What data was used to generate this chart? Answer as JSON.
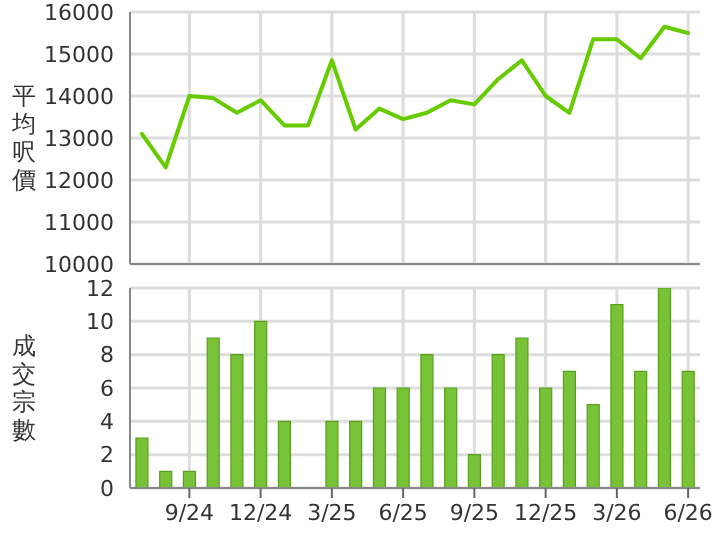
{
  "chart_data": [
    {
      "type": "line",
      "ylabel": "平均呎價",
      "categories": [
        null,
        null,
        null,
        null,
        null,
        null,
        null,
        null,
        null,
        null,
        null,
        null,
        null,
        null,
        null,
        null,
        null,
        null,
        null,
        null,
        null,
        null,
        null,
        null
      ],
      "values": [
        13100,
        12300,
        14000,
        13950,
        13600,
        13900,
        13300,
        13300,
        14850,
        13200,
        13700,
        13450,
        13600,
        13900,
        13800,
        14400,
        14850,
        14000,
        13600,
        15350,
        15350,
        14900,
        15650,
        15500
      ],
      "color": "#66cc00",
      "ylim": [
        10000,
        16000
      ],
      "yticks": [
        10000,
        11000,
        12000,
        13000,
        14000,
        15000,
        16000
      ],
      "grid": true,
      "tick_labels": "y"
    },
    {
      "type": "bar",
      "ylabel": "成交宗數",
      "categories": [
        null,
        null,
        "9/24",
        null,
        null,
        "12/24",
        null,
        null,
        "3/25",
        null,
        null,
        "6/25",
        null,
        null,
        "9/25",
        null,
        null,
        "12/25",
        null,
        null,
        "3/26",
        null,
        null,
        "6/26"
      ],
      "values": [
        3,
        1,
        1,
        9,
        8,
        10,
        4,
        null,
        4,
        4,
        6,
        6,
        8,
        6,
        2,
        8,
        9,
        6,
        7,
        5,
        11,
        7,
        12,
        7
      ],
      "color": "#77c236",
      "ylim": [
        0,
        12
      ],
      "yticks": [
        0,
        2,
        4,
        6,
        8,
        10,
        12
      ],
      "grid": true
    }
  ]
}
